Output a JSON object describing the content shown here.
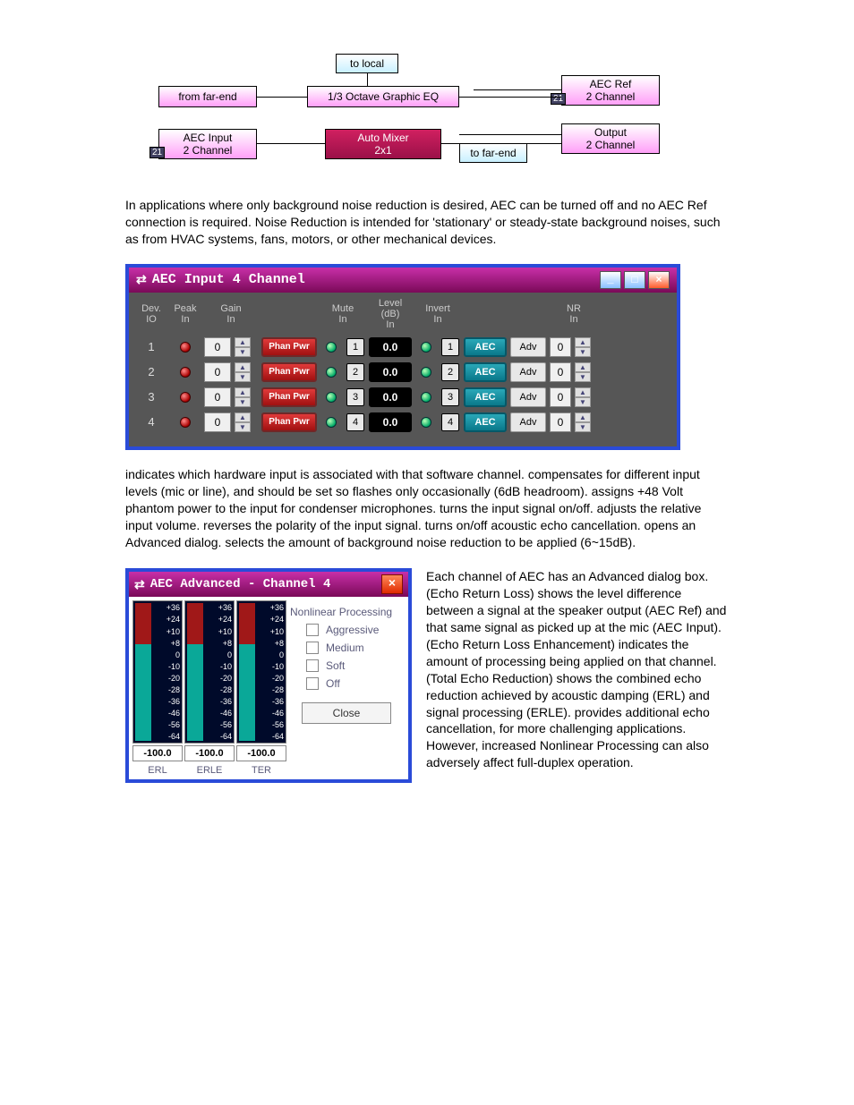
{
  "diagram1": {
    "to_local": "to local",
    "from_far_end": "from far-end",
    "eq": "1/3 Octave Graphic EQ",
    "aec_ref": "AEC Ref\n2 Channel",
    "aec_input": "AEC Input\n2 Channel",
    "auto_mixer": "Auto Mixer\n2x1",
    "to_far_end": "to far-end",
    "output": "Output\n2 Channel",
    "badge": "21"
  },
  "para1": "In applications where only background noise reduction is desired, AEC can be turned off and no AEC Ref connection is required. Noise Reduction is intended for 'stationary' or steady-state background noises, such as from HVAC systems, fans, motors, or other mechanical devices.",
  "panel": {
    "title": "AEC Input 4 Channel",
    "headers": {
      "dev_io": "Dev.\nIO",
      "peak_in": "Peak\nIn",
      "gain_in": "Gain\nIn",
      "mute_in": "Mute\nIn",
      "level_in": "Level (dB)\nIn",
      "invert_in": "Invert\nIn",
      "nr_in": "NR\nIn"
    },
    "rows": [
      {
        "ch": "1",
        "gain": "0",
        "phan": "Phan Pwr",
        "idx": "1",
        "level": "0.0",
        "aec": "AEC",
        "adv": "Adv",
        "nr": "0"
      },
      {
        "ch": "2",
        "gain": "0",
        "phan": "Phan Pwr",
        "idx": "2",
        "level": "0.0",
        "aec": "AEC",
        "adv": "Adv",
        "nr": "0"
      },
      {
        "ch": "3",
        "gain": "0",
        "phan": "Phan Pwr",
        "idx": "3",
        "level": "0.0",
        "aec": "AEC",
        "adv": "Adv",
        "nr": "0"
      },
      {
        "ch": "4",
        "gain": "0",
        "phan": "Phan Pwr",
        "idx": "4",
        "level": "0.0",
        "aec": "AEC",
        "adv": "Adv",
        "nr": "0"
      }
    ]
  },
  "para2": {
    "s1a": "indicates which hardware input is associated with that software channel.",
    "s2a": "compensates for different input levels (mic or line), and should be set so",
    "s2b": "flashes only occasionally (6dB headroom).",
    "s3a": "assigns +48 Volt phantom power to the input for condenser microphones.",
    "s4a": "turns the input signal on/off.",
    "s5a": "adjusts the relative input volume.",
    "s6a": "reverses the polarity of the input signal.",
    "s7a": "turns on/off acoustic echo cancellation.",
    "s8a": "opens an Advanced dialog.",
    "s9a": "selects the amount of background noise reduction to be applied (6~15dB)."
  },
  "adv": {
    "title": "AEC Advanced - Channel 4",
    "scale": [
      "+36",
      "+24",
      "+10",
      "+8",
      "0",
      "-10",
      "-20",
      "-28",
      "-36",
      "-46",
      "-56",
      "-64"
    ],
    "readout": "-100.0",
    "meters": [
      "ERL",
      "ERLE",
      "TER"
    ],
    "nlp_title": "Nonlinear Processing",
    "nlp_options": [
      "Aggressive",
      "Medium",
      "Soft",
      "Off"
    ],
    "close": "Close"
  },
  "rightpara": {
    "a": "Each channel of AEC has an Advanced dialog box.",
    "b": "(Echo Return Loss) shows the level difference between a signal at the speaker output (AEC Ref) and that same signal as picked up at the mic (AEC Input).",
    "c": "(Echo Return Loss Enhancement) indicates the amount of processing being applied on that channel.",
    "d": "(Total Echo Reduction) shows the combined echo reduction achieved by acoustic damping (ERL) and signal processing (ERLE).",
    "e": "provides additional echo cancellation, for more challenging applications. However, increased Nonlinear Processing can also adversely affect full-duplex operation."
  }
}
